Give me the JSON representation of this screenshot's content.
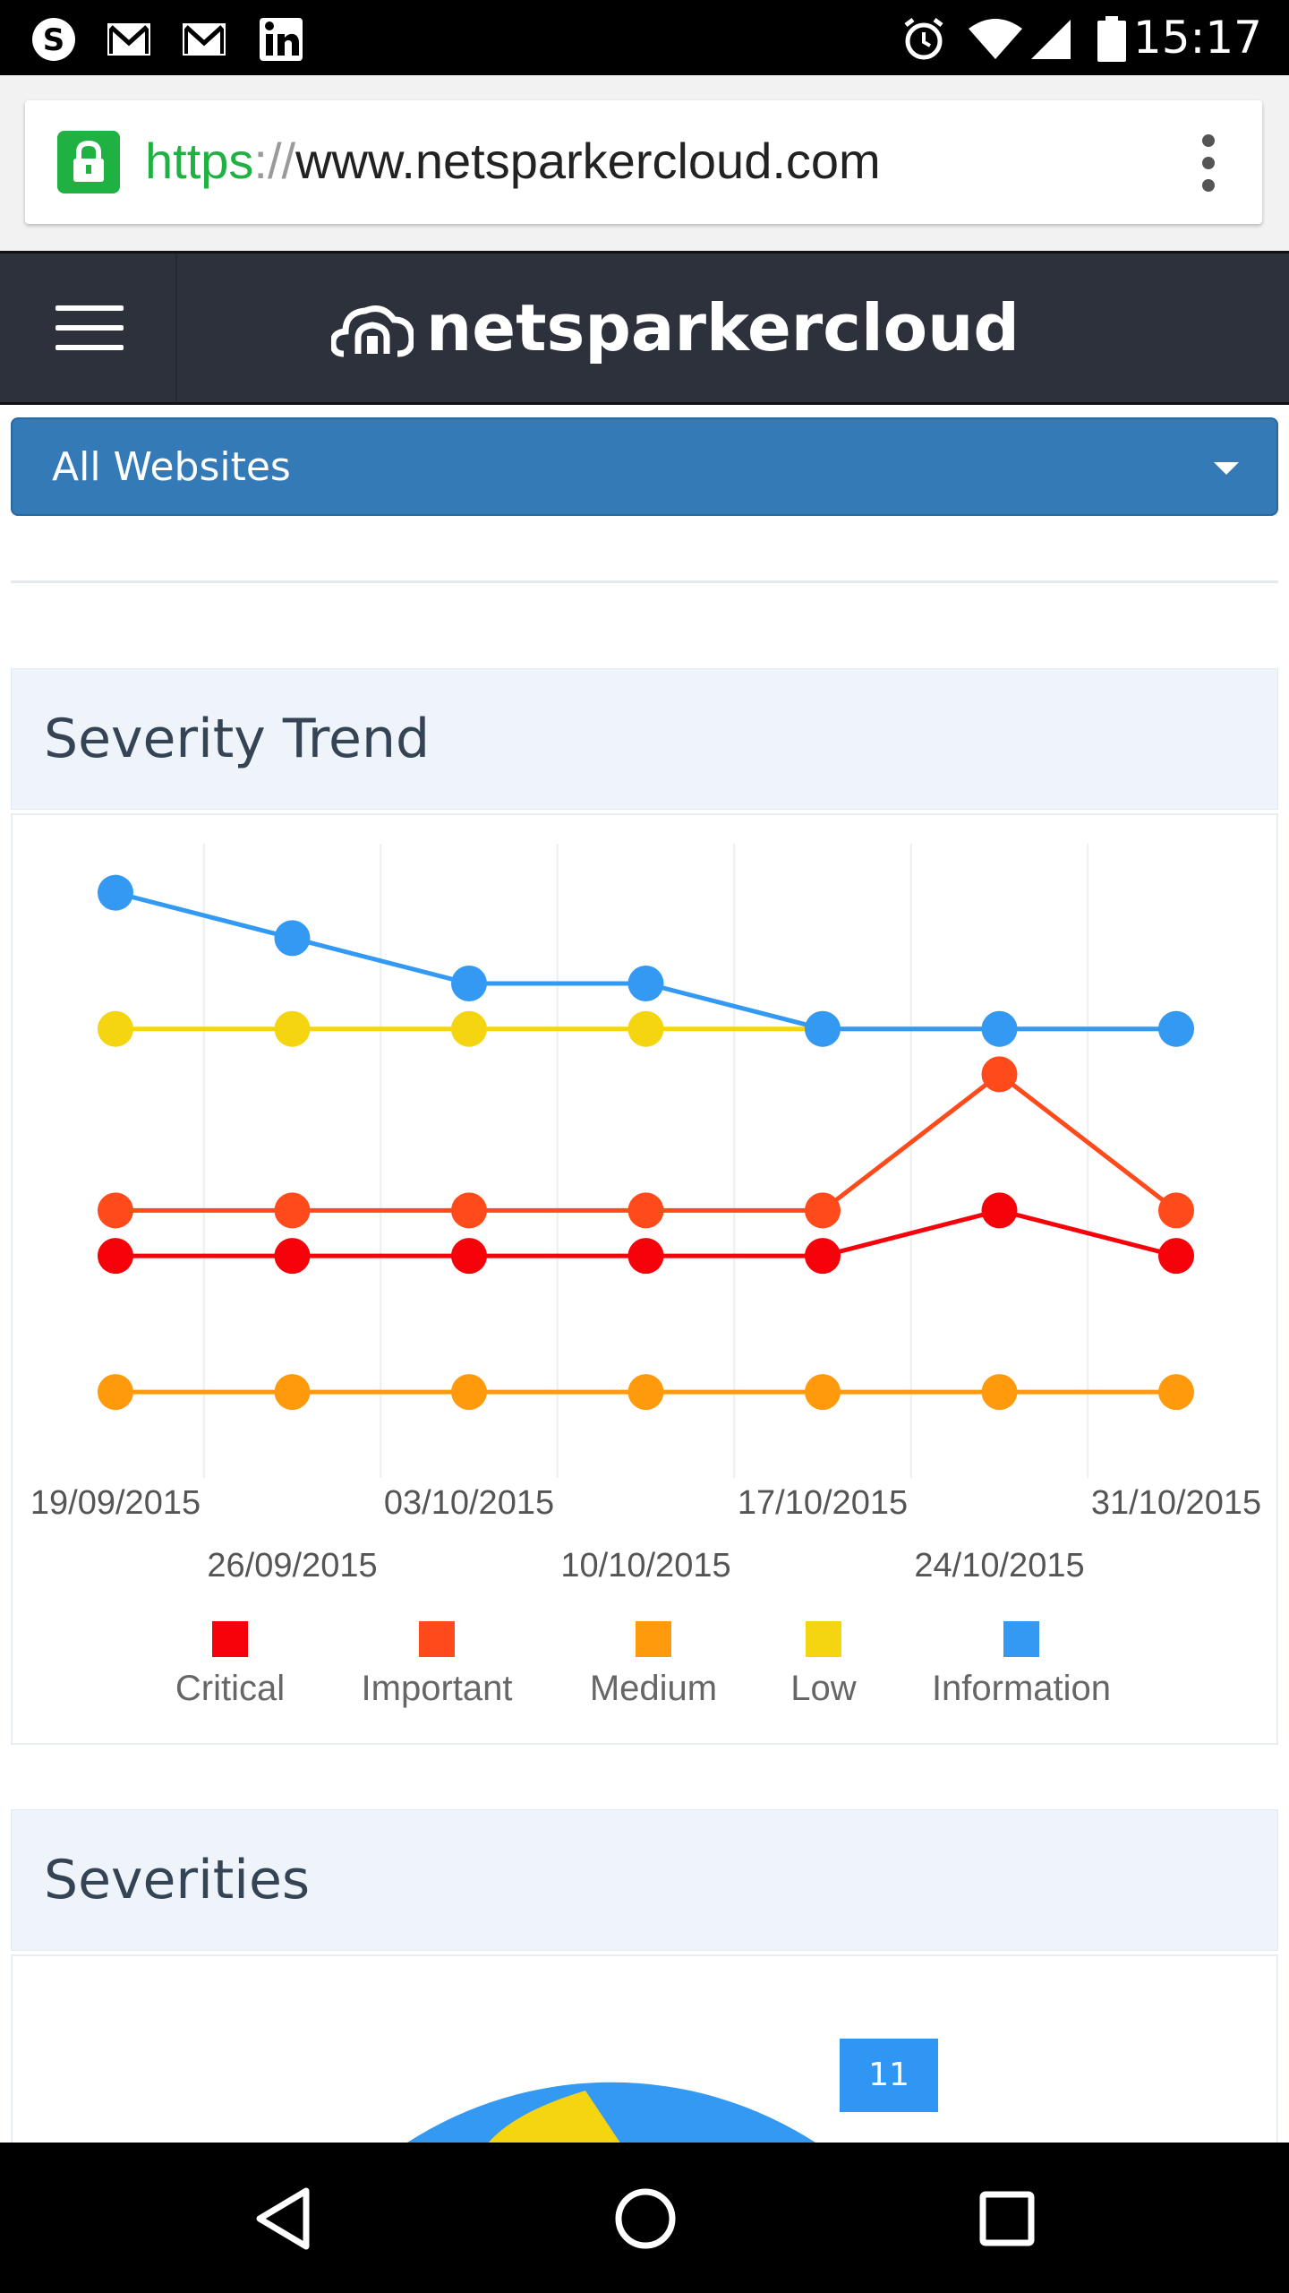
{
  "status_bar": {
    "time": "15:17",
    "left_icons": [
      "skype-icon",
      "gmail-icon",
      "gmail-icon",
      "linkedin-icon"
    ],
    "right_icons": [
      "alarm-icon",
      "wifi-icon",
      "signal-icon",
      "battery-icon"
    ]
  },
  "browser": {
    "url_scheme": "https",
    "url_separator": "://",
    "url_host": "www.netsparkercloud.com",
    "lock_color": "#1fb141"
  },
  "navbar": {
    "brand": "netsparkercloud"
  },
  "website_select": {
    "selected": "All Websites"
  },
  "severity_trend": {
    "title": "Severity Trend"
  },
  "severities": {
    "title": "Severities",
    "badge": "11"
  },
  "colors": {
    "critical": "#f5020b",
    "important": "#ff4a1c",
    "medium": "#ff9a0d",
    "low": "#f5d410",
    "information": "#3399f3",
    "primary": "#337ab7"
  },
  "chart_data": {
    "type": "line",
    "x": [
      "19/09/2015",
      "26/09/2015",
      "03/10/2015",
      "10/10/2015",
      "17/10/2015",
      "24/10/2015",
      "31/10/2015"
    ],
    "series": [
      {
        "name": "Critical",
        "color": "#f5020b",
        "values": [
          5,
          5,
          5,
          5,
          5,
          6,
          5
        ]
      },
      {
        "name": "Important",
        "color": "#ff4a1c",
        "values": [
          6,
          6,
          6,
          6,
          6,
          9,
          6
        ]
      },
      {
        "name": "Medium",
        "color": "#ff9a0d",
        "values": [
          2,
          2,
          2,
          2,
          2,
          2,
          2
        ]
      },
      {
        "name": "Low",
        "color": "#f5d410",
        "values": [
          10,
          10,
          10,
          10,
          10,
          10,
          10
        ]
      },
      {
        "name": "Information",
        "color": "#3399f3",
        "values": [
          13,
          12,
          11,
          11,
          10,
          10,
          10
        ]
      }
    ],
    "ylim": [
      0.7,
      14
    ],
    "grid": "vertical",
    "legend_position": "bottom"
  },
  "system_nav": {
    "buttons": [
      "back-icon",
      "home-icon",
      "recents-icon"
    ]
  }
}
